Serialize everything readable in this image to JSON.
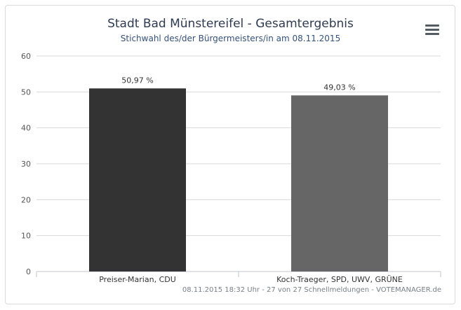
{
  "chart_data": {
    "type": "bar",
    "title": "Stadt Bad Münstereifel - Gesamtergebnis",
    "subtitle": "Stichwahl des/der Bürgermeisters/in am 08.11.2015",
    "categories": [
      "Preiser-Marian, CDU",
      "Koch-Traeger, SPD, UWV, GRÜNE"
    ],
    "values": [
      50.97,
      49.03
    ],
    "data_labels": [
      "50,97 %",
      "49,03 %"
    ],
    "colors": [
      "#333333",
      "#666666"
    ],
    "ylim": [
      0,
      60
    ],
    "yticks": [
      "0",
      "10",
      "20",
      "30",
      "40",
      "50",
      "60"
    ],
    "ytick_values": [
      0,
      10,
      20,
      30,
      40,
      50,
      60
    ],
    "grid": true,
    "legend": "none"
  },
  "credits": "08.11.2015 18:32 Uhr - 27 von 27 Schnellmeldungen - VOTEMANAGER.de",
  "menu_icon": "hamburger-menu-icon"
}
